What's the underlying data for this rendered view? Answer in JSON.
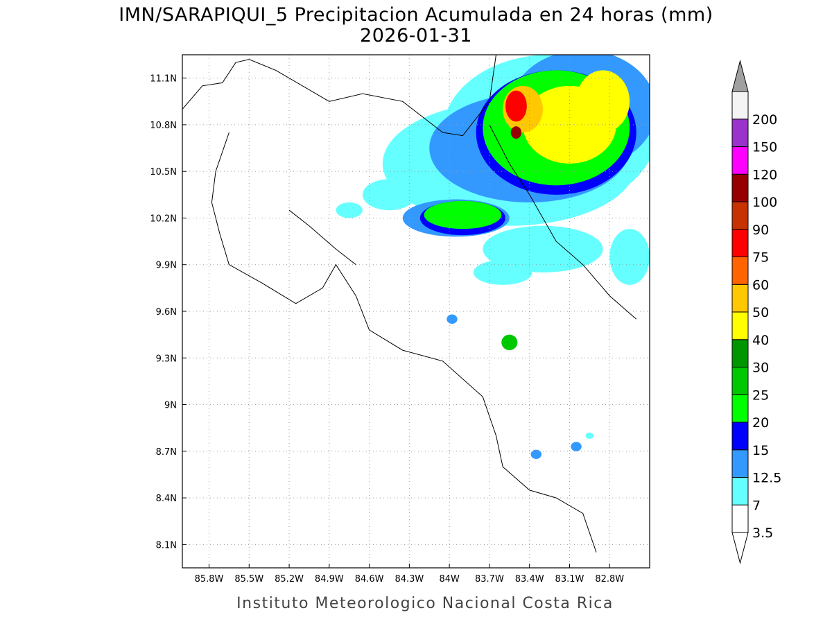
{
  "title": {
    "line1": "IMN/SARAPIQUI_5 Precipitacion Acumulada en 24 horas (mm)",
    "line2": "2026-01-31"
  },
  "footer": "Instituto Meteorologico Nacional Costa Rica",
  "axes": {
    "lon_range": [
      -86.0,
      -82.5
    ],
    "lat_range": [
      7.95,
      11.25
    ],
    "lon_ticks": [
      {
        "value": -85.8,
        "label": "85.8W"
      },
      {
        "value": -85.5,
        "label": "85.5W"
      },
      {
        "value": -85.2,
        "label": "85.2W"
      },
      {
        "value": -84.9,
        "label": "84.9W"
      },
      {
        "value": -84.6,
        "label": "84.6W"
      },
      {
        "value": -84.3,
        "label": "84.3W"
      },
      {
        "value": -84.0,
        "label": "84W"
      },
      {
        "value": -83.7,
        "label": "83.7W"
      },
      {
        "value": -83.4,
        "label": "83.4W"
      },
      {
        "value": -83.1,
        "label": "83.1W"
      },
      {
        "value": -82.8,
        "label": "82.8W"
      }
    ],
    "lat_ticks": [
      {
        "value": 8.1,
        "label": "8.1N"
      },
      {
        "value": 8.4,
        "label": "8.4N"
      },
      {
        "value": 8.7,
        "label": "8.7N"
      },
      {
        "value": 9.0,
        "label": "9N"
      },
      {
        "value": 9.3,
        "label": "9.3N"
      },
      {
        "value": 9.6,
        "label": "9.6N"
      },
      {
        "value": 9.9,
        "label": "9.9N"
      },
      {
        "value": 10.2,
        "label": "10.2N"
      },
      {
        "value": 10.5,
        "label": "10.5N"
      },
      {
        "value": 10.8,
        "label": "10.8N"
      },
      {
        "value": 11.1,
        "label": "11.1N"
      }
    ],
    "grid": "dotted"
  },
  "colorbar": {
    "upper_arrow_color": "#a0a0a0",
    "lower_arrow_color": "#ffffff",
    "bins": [
      {
        "label": "3.5",
        "color": "#ffffff"
      },
      {
        "label": "7",
        "color": "#66ffff"
      },
      {
        "label": "12.5",
        "color": "#3399ff"
      },
      {
        "label": "15",
        "color": "#0000ff"
      },
      {
        "label": "20",
        "color": "#00ff00"
      },
      {
        "label": "25",
        "color": "#00c800"
      },
      {
        "label": "30",
        "color": "#009600"
      },
      {
        "label": "40",
        "color": "#ffff00"
      },
      {
        "label": "50",
        "color": "#ffc800"
      },
      {
        "label": "60",
        "color": "#ff6400"
      },
      {
        "label": "75",
        "color": "#ff0000"
      },
      {
        "label": "90",
        "color": "#c83200"
      },
      {
        "label": "100",
        "color": "#960000"
      },
      {
        "label": "120",
        "color": "#ff00ff"
      },
      {
        "label": "150",
        "color": "#9933cc"
      },
      {
        "label": "200",
        "color": "#f4f4f4"
      }
    ]
  },
  "precip_blobs": [
    {
      "lon": -83.55,
      "lat": 10.55,
      "rlon": 0.95,
      "rlat": 0.4,
      "level": 1
    },
    {
      "lon": -83.25,
      "lat": 10.75,
      "rlon": 0.8,
      "rlat": 0.5,
      "level": 1
    },
    {
      "lon": -84.45,
      "lat": 10.35,
      "rlon": 0.2,
      "rlat": 0.1,
      "level": 1
    },
    {
      "lon": -84.75,
      "lat": 10.25,
      "rlon": 0.1,
      "rlat": 0.05,
      "level": 1
    },
    {
      "lon": -83.3,
      "lat": 10.0,
      "rlon": 0.45,
      "rlat": 0.15,
      "level": 1
    },
    {
      "lon": -82.65,
      "lat": 9.95,
      "rlon": 0.15,
      "rlat": 0.18,
      "level": 1
    },
    {
      "lon": -83.6,
      "lat": 9.85,
      "rlon": 0.22,
      "rlat": 0.08,
      "level": 1
    },
    {
      "lon": -83.4,
      "lat": 10.65,
      "rlon": 0.75,
      "rlat": 0.35,
      "level": 2
    },
    {
      "lon": -83.95,
      "lat": 10.2,
      "rlon": 0.4,
      "rlat": 0.12,
      "level": 2
    },
    {
      "lon": -83.0,
      "lat": 10.9,
      "rlon": 0.55,
      "rlat": 0.38,
      "level": 2
    },
    {
      "lon": -83.9,
      "lat": 10.2,
      "rlon": 0.32,
      "rlat": 0.11,
      "level": 3
    },
    {
      "lon": -83.2,
      "lat": 10.75,
      "rlon": 0.6,
      "rlat": 0.4,
      "level": 3
    },
    {
      "lon": -83.9,
      "lat": 10.22,
      "rlon": 0.29,
      "rlat": 0.09,
      "level": 4
    },
    {
      "lon": -83.2,
      "lat": 10.78,
      "rlon": 0.55,
      "rlat": 0.37,
      "level": 4
    },
    {
      "lon": -83.1,
      "lat": 10.8,
      "rlon": 0.35,
      "rlat": 0.25,
      "level": 7
    },
    {
      "lon": -82.85,
      "lat": 10.95,
      "rlon": 0.2,
      "rlat": 0.2,
      "level": 7
    },
    {
      "lon": -83.45,
      "lat": 10.9,
      "rlon": 0.15,
      "rlat": 0.15,
      "level": 8
    },
    {
      "lon": -83.5,
      "lat": 10.92,
      "rlon": 0.08,
      "rlat": 0.1,
      "level": 10
    },
    {
      "lon": -83.5,
      "lat": 10.75,
      "rlon": 0.04,
      "rlat": 0.04,
      "level": 12
    },
    {
      "lon": -83.98,
      "lat": 9.55,
      "rlon": 0.04,
      "rlat": 0.03,
      "level": 2
    },
    {
      "lon": -83.55,
      "lat": 9.4,
      "rlon": 0.06,
      "rlat": 0.05,
      "level": 5
    },
    {
      "lon": -83.35,
      "lat": 8.68,
      "rlon": 0.04,
      "rlat": 0.03,
      "level": 2
    },
    {
      "lon": -83.05,
      "lat": 8.73,
      "rlon": 0.04,
      "rlat": 0.03,
      "level": 2
    },
    {
      "lon": -82.95,
      "lat": 8.8,
      "rlon": 0.03,
      "rlat": 0.02,
      "level": 1
    }
  ],
  "coastlines": [
    [
      [
        -86.0,
        10.9
      ],
      [
        -85.85,
        11.05
      ],
      [
        -85.7,
        11.07
      ],
      [
        -85.6,
        11.2
      ],
      [
        -85.5,
        11.22
      ],
      [
        -85.3,
        11.15
      ],
      [
        -84.9,
        10.95
      ],
      [
        -84.65,
        11.0
      ],
      [
        -84.35,
        10.95
      ],
      [
        -84.05,
        10.75
      ],
      [
        -83.9,
        10.73
      ],
      [
        -83.7,
        10.95
      ],
      [
        -83.65,
        11.25
      ]
    ],
    [
      [
        -85.65,
        10.75
      ],
      [
        -85.75,
        10.5
      ],
      [
        -85.78,
        10.3
      ],
      [
        -85.72,
        10.1
      ],
      [
        -85.65,
        9.9
      ],
      [
        -85.4,
        9.78
      ],
      [
        -85.15,
        9.65
      ],
      [
        -84.95,
        9.75
      ],
      [
        -84.85,
        9.9
      ],
      [
        -84.7,
        9.7
      ],
      [
        -84.6,
        9.48
      ],
      [
        -84.35,
        9.35
      ],
      [
        -84.05,
        9.28
      ],
      [
        -83.75,
        9.05
      ],
      [
        -83.65,
        8.8
      ],
      [
        -83.6,
        8.6
      ],
      [
        -83.4,
        8.45
      ],
      [
        -83.2,
        8.4
      ],
      [
        -83.0,
        8.3
      ],
      [
        -82.9,
        8.05
      ]
    ],
    [
      [
        -85.2,
        10.25
      ],
      [
        -85.05,
        10.15
      ],
      [
        -84.85,
        10.0
      ],
      [
        -84.7,
        9.9
      ]
    ],
    [
      [
        -83.7,
        10.8
      ],
      [
        -83.55,
        10.55
      ],
      [
        -83.4,
        10.35
      ],
      [
        -83.2,
        10.05
      ],
      [
        -83.0,
        9.9
      ],
      [
        -82.8,
        9.7
      ],
      [
        -82.6,
        9.55
      ]
    ]
  ]
}
